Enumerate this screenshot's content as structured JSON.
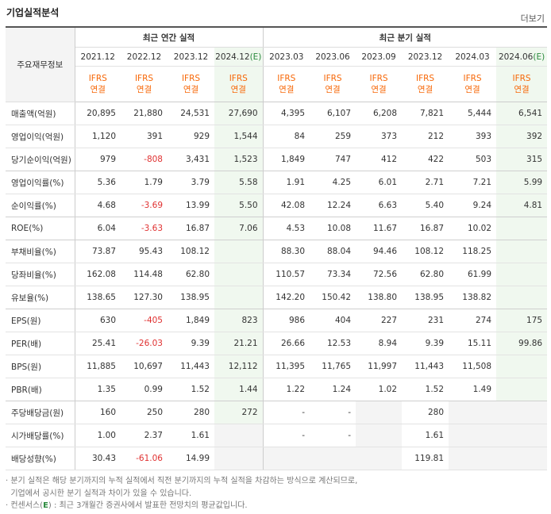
{
  "title": "기업실적분석",
  "more_label": "더보기",
  "corner_label": "주요재무정보",
  "groups": {
    "annual": "최근 연간 실적",
    "quarter": "최근 분기 실적"
  },
  "periods": [
    "2021.12",
    "2022.12",
    "2023.12",
    "2024.12",
    "2023.03",
    "2023.06",
    "2023.09",
    "2023.12",
    "2024.03",
    "2024.06"
  ],
  "est_marker": "(E)",
  "ifrs_line1": "IFRS",
  "ifrs_line2": "연결",
  "rows": [
    {
      "label": "매출액(억원)",
      "v": [
        "20,895",
        "21,880",
        "24,531",
        "27,690",
        "4,395",
        "6,107",
        "6,208",
        "7,821",
        "5,444",
        "6,541"
      ]
    },
    {
      "label": "영업이익(억원)",
      "v": [
        "1,120",
        "391",
        "929",
        "1,544",
        "84",
        "259",
        "373",
        "212",
        "393",
        "392"
      ]
    },
    {
      "label": "당기순이익(억원)",
      "v": [
        "979",
        "-808",
        "3,431",
        "1,523",
        "1,849",
        "747",
        "412",
        "422",
        "503",
        "315"
      ]
    },
    {
      "label": "영업이익률(%)",
      "v": [
        "5.36",
        "1.79",
        "3.79",
        "5.58",
        "1.91",
        "4.25",
        "6.01",
        "2.71",
        "7.21",
        "5.99"
      ]
    },
    {
      "label": "순이익률(%)",
      "v": [
        "4.68",
        "-3.69",
        "13.99",
        "5.50",
        "42.08",
        "12.24",
        "6.63",
        "5.40",
        "9.24",
        "4.81"
      ]
    },
    {
      "label": "ROE(%)",
      "v": [
        "6.04",
        "-3.63",
        "16.87",
        "7.06",
        "4.53",
        "10.08",
        "11.67",
        "16.87",
        "10.02",
        ""
      ]
    },
    {
      "label": "부채비율(%)",
      "v": [
        "73.87",
        "95.43",
        "108.12",
        "",
        "88.30",
        "88.04",
        "94.46",
        "108.12",
        "118.25",
        ""
      ]
    },
    {
      "label": "당좌비율(%)",
      "v": [
        "162.08",
        "114.48",
        "62.80",
        "",
        "110.57",
        "73.34",
        "72.56",
        "62.80",
        "61.99",
        ""
      ]
    },
    {
      "label": "유보율(%)",
      "v": [
        "138.65",
        "127.30",
        "138.95",
        "",
        "142.20",
        "150.42",
        "138.80",
        "138.95",
        "138.82",
        ""
      ]
    },
    {
      "label": "EPS(원)",
      "v": [
        "630",
        "-405",
        "1,849",
        "823",
        "986",
        "404",
        "227",
        "231",
        "274",
        "175"
      ]
    },
    {
      "label": "PER(배)",
      "v": [
        "25.41",
        "-26.03",
        "9.39",
        "21.21",
        "26.66",
        "12.53",
        "8.94",
        "9.39",
        "15.11",
        "99.86"
      ]
    },
    {
      "label": "BPS(원)",
      "v": [
        "11,885",
        "10,697",
        "11,443",
        "12,112",
        "11,395",
        "11,765",
        "11,997",
        "11,443",
        "11,508",
        ""
      ]
    },
    {
      "label": "PBR(배)",
      "v": [
        "1.35",
        "0.99",
        "1.52",
        "1.44",
        "1.22",
        "1.24",
        "1.02",
        "1.52",
        "1.49",
        ""
      ]
    },
    {
      "label": "주당배당금(원)",
      "v": [
        "160",
        "250",
        "280",
        "272",
        "-",
        "-",
        "",
        "280",
        "",
        ""
      ]
    },
    {
      "label": "시가배당률(%)",
      "v": [
        "1.00",
        "2.37",
        "1.61",
        "",
        "-",
        "-",
        "",
        "1.61",
        "",
        ""
      ]
    },
    {
      "label": "배당성향(%)",
      "v": [
        "30.43",
        "-61.06",
        "14.99",
        "",
        "",
        "",
        "",
        "119.81",
        "",
        ""
      ]
    }
  ],
  "grey_cells": [
    [
      13,
      6
    ],
    [
      13,
      8
    ],
    [
      13,
      9
    ],
    [
      14,
      3
    ],
    [
      14,
      6
    ],
    [
      14,
      8
    ],
    [
      14,
      9
    ],
    [
      15,
      3
    ],
    [
      15,
      4
    ],
    [
      15,
      5
    ],
    [
      15,
      6
    ],
    [
      15,
      8
    ],
    [
      15,
      9
    ]
  ],
  "notes": {
    "line1": "· 분기 실적은 해당 분기까지의 누적 실적에서 직전 분기까지의 누적 실적을 차감하는 방식으로 계산되므로,",
    "line2": "  기업에서 공시한 분기 실적과 차이가 있을 수 있습니다.",
    "line3_pre": "· 컨센서스(",
    "line3_e": "E",
    "line3_post": ") : 최근 3개월간 증권사에서 발표한 전망치의 평균값입니다."
  },
  "colors": {
    "negative": "#e03131",
    "ifrs": "#f76707",
    "estimate_bg": "#f0f8ef",
    "estimate_marker": "#2b8a3e"
  }
}
